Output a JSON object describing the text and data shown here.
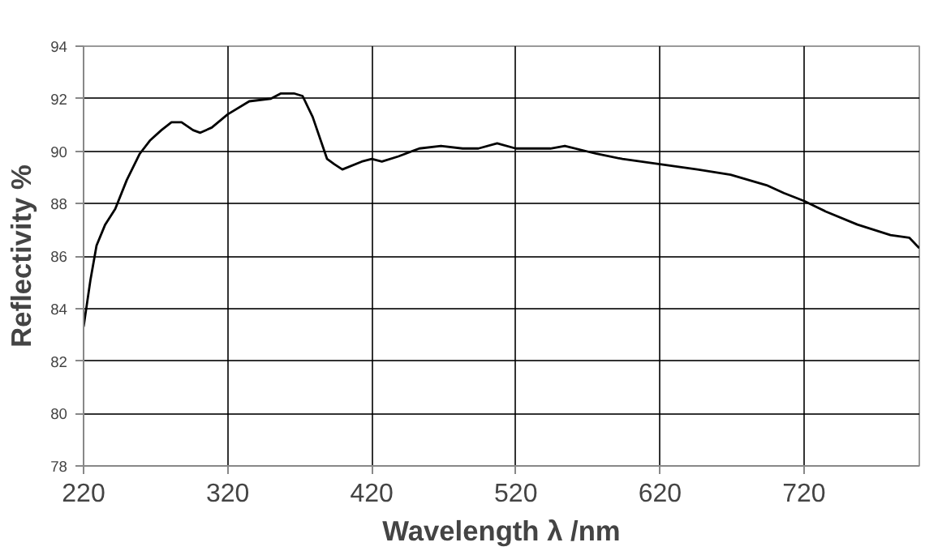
{
  "chart_data": {
    "type": "line",
    "xlabel": "Wavelength λ /nm",
    "ylabel": "Reflectivity %",
    "xlim": [
      220,
      800
    ],
    "ylim": [
      78,
      94
    ],
    "xticks": [
      220,
      320,
      420,
      520,
      620,
      720
    ],
    "yticks": [
      78,
      80,
      82,
      84,
      86,
      88,
      90,
      92,
      94
    ],
    "grid": true,
    "marker": "none",
    "line_style": "solid",
    "series": [
      {
        "color": "#000000",
        "x": [
          220,
          224.8,
          229,
          235,
          242,
          250,
          259,
          266,
          274,
          281,
          288,
          296,
          301,
          309,
          320,
          335,
          350,
          357,
          366,
          372,
          379,
          389,
          394,
          399.6,
          413,
          420,
          427,
          438.5,
          453,
          468,
          483,
          494,
          507,
          520,
          544,
          554,
          576,
          594,
          620,
          646,
          669,
          694,
          706,
          720,
          735,
          757,
          780,
          793,
          800
        ],
        "values": [
          83.3,
          85.1,
          86.4,
          87.2,
          87.8,
          88.9,
          89.9,
          90.4,
          90.8,
          91.1,
          91.1,
          90.8,
          90.7,
          90.9,
          91.4,
          91.9,
          92.0,
          92.2,
          92.2,
          92.1,
          91.3,
          89.7,
          89.5,
          89.3,
          89.6,
          89.7,
          89.6,
          89.8,
          90.1,
          90.2,
          90.1,
          90.1,
          90.3,
          90.1,
          90.1,
          90.2,
          89.9,
          89.7,
          89.5,
          89.3,
          89.1,
          88.7,
          88.4,
          88.1,
          87.7,
          87.2,
          86.8,
          86.7,
          86.3
        ]
      }
    ]
  }
}
